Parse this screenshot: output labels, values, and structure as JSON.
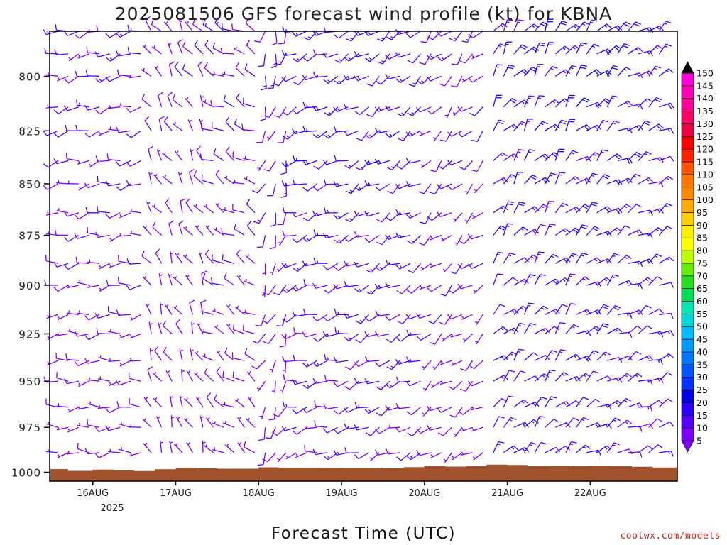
{
  "chart_data": {
    "type": "wind-barb-profile",
    "title": "2025081506 GFS forecast wind profile (kt) for KBNA",
    "xlabel": "Forecast Time (UTC)",
    "credit": "coolwx.com/models",
    "y_axis": {
      "label": "",
      "ticks": [
        800,
        825,
        850,
        875,
        900,
        925,
        950,
        975,
        1000
      ],
      "range_hpa": [
        780,
        1005
      ],
      "scale": "log-pressure"
    },
    "x_axis": {
      "ticks": [
        "16AUG",
        "17AUG",
        "18AUG",
        "19AUG",
        "20AUG",
        "21AUG",
        "22AUG"
      ],
      "year_label": "2025",
      "range_days_from_start": [
        -0.52,
        7.05
      ]
    },
    "levels_hpa": [
      780,
      790,
      800,
      814,
      825,
      839,
      850,
      864,
      875,
      889,
      900,
      915,
      925,
      939,
      950,
      964,
      975,
      989
    ],
    "surface_pressure_hpa": [
      {
        "x": -0.55,
        "p": 998.2
      },
      {
        "x": -0.3,
        "p": 999.2
      },
      {
        "x": 0.0,
        "p": 998.5
      },
      {
        "x": 0.25,
        "p": 998.9
      },
      {
        "x": 0.5,
        "p": 999.3
      },
      {
        "x": 0.75,
        "p": 998.3
      },
      {
        "x": 1.0,
        "p": 997.5
      },
      {
        "x": 1.25,
        "p": 997.8
      },
      {
        "x": 1.5,
        "p": 998.0
      },
      {
        "x": 1.75,
        "p": 998.0
      },
      {
        "x": 2.0,
        "p": 997.2
      },
      {
        "x": 2.25,
        "p": 997.4
      },
      {
        "x": 2.5,
        "p": 997.4
      },
      {
        "x": 2.75,
        "p": 997.5
      },
      {
        "x": 3.0,
        "p": 997.6
      },
      {
        "x": 3.25,
        "p": 997.6
      },
      {
        "x": 3.5,
        "p": 997.8
      },
      {
        "x": 3.75,
        "p": 997.1
      },
      {
        "x": 4.0,
        "p": 996.6
      },
      {
        "x": 4.25,
        "p": 996.8
      },
      {
        "x": 4.5,
        "p": 996.6
      },
      {
        "x": 4.75,
        "p": 995.7
      },
      {
        "x": 5.0,
        "p": 995.9
      },
      {
        "x": 5.25,
        "p": 996.6
      },
      {
        "x": 5.5,
        "p": 996.4
      },
      {
        "x": 5.75,
        "p": 996.5
      },
      {
        "x": 6.0,
        "p": 996.3
      },
      {
        "x": 6.25,
        "p": 996.6
      },
      {
        "x": 6.5,
        "p": 996.9
      },
      {
        "x": 6.75,
        "p": 997.3
      },
      {
        "x": 7.05,
        "p": 997.0
      }
    ],
    "speed_colorbar": {
      "unit": "kt",
      "values": [
        5,
        10,
        15,
        20,
        25,
        30,
        35,
        40,
        45,
        50,
        55,
        60,
        65,
        70,
        75,
        80,
        85,
        90,
        95,
        100,
        105,
        110,
        115,
        120,
        125,
        130,
        135,
        140,
        145,
        150
      ],
      "colors": [
        "#7f00ff",
        "#5500ff",
        "#2b00ff",
        "#0000e0",
        "#0033ff",
        "#0055ff",
        "#0077ff",
        "#0099ff",
        "#00bbff",
        "#00d7d7",
        "#00e8b0",
        "#00dd55",
        "#22dd22",
        "#66ee00",
        "#bbff00",
        "#ffff00",
        "#ffee00",
        "#ffcc00",
        "#ffaa00",
        "#ff8800",
        "#ff7700",
        "#ff5500",
        "#ff2200",
        "#ff0000",
        "#ee0044",
        "#ff0066",
        "#ff0099",
        "#ff00bb",
        "#ff00dd",
        "#000000"
      ]
    },
    "wind_regimes": [
      {
        "from_day": -0.55,
        "to_day": 0.7,
        "direction_deg": 260,
        "speed_kt": 8
      },
      {
        "from_day": 0.7,
        "to_day": 1.4,
        "direction_deg": 330,
        "speed_kt": 6
      },
      {
        "from_day": 1.4,
        "to_day": 2.0,
        "direction_deg": 300,
        "speed_kt": 8
      },
      {
        "from_day": 2.0,
        "to_day": 2.4,
        "direction_deg": 200,
        "speed_kt": 9
      },
      {
        "from_day": 2.4,
        "to_day": 3.2,
        "direction_deg": 250,
        "speed_kt": 12
      },
      {
        "from_day": 3.2,
        "to_day": 4.0,
        "direction_deg": 240,
        "speed_kt": 12
      },
      {
        "from_day": 4.0,
        "to_day": 4.8,
        "direction_deg": 230,
        "speed_kt": 8
      },
      {
        "from_day": 4.8,
        "to_day": 5.8,
        "direction_deg": 40,
        "speed_kt": 15
      },
      {
        "from_day": 5.8,
        "to_day": 6.3,
        "direction_deg": 50,
        "speed_kt": 16
      },
      {
        "from_day": 6.3,
        "to_day": 7.1,
        "direction_deg": 60,
        "speed_kt": 14
      }
    ]
  },
  "colors": {
    "terrain": "#a0522d",
    "frame": "#000000",
    "credit": "#cc2222"
  }
}
